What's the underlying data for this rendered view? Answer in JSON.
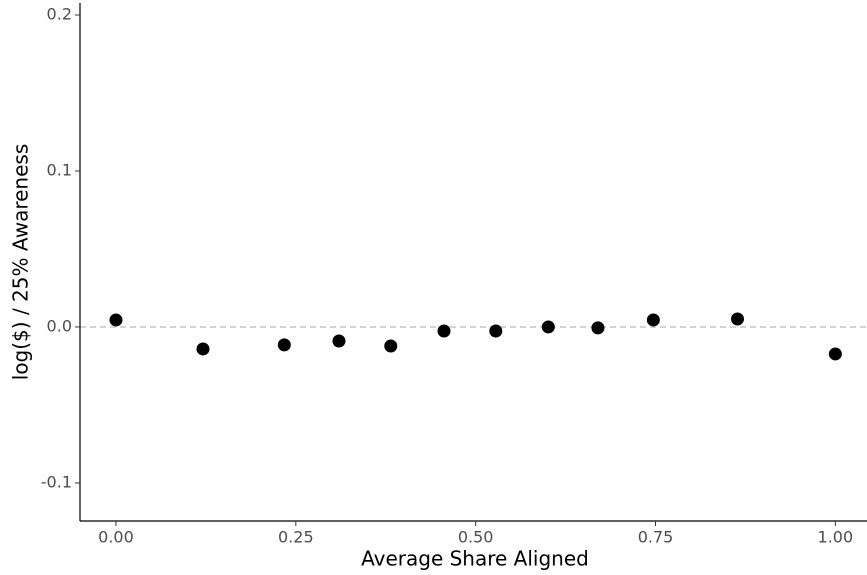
{
  "chart_data": {
    "type": "scatter",
    "x_label": "Average Share Aligned",
    "y_label": "log($) / 25% Awareness",
    "x": [
      0.0,
      0.121,
      0.234,
      0.31,
      0.382,
      0.456,
      0.528,
      0.601,
      0.67,
      0.747,
      0.864,
      1.0
    ],
    "values": [
      0.0045,
      -0.0141,
      -0.0115,
      -0.009,
      -0.0122,
      -0.0026,
      -0.0026,
      0.0,
      -0.0006,
      0.0045,
      0.0051,
      -0.0173
    ],
    "color": "#000000",
    "xlim": [
      -0.05,
      1.044
    ],
    "ylim": [
      -0.1244,
      0.2077
    ],
    "xticks": [
      {
        "value": 0,
        "label": "0.00"
      },
      {
        "value": 0.25,
        "label": "0.25"
      },
      {
        "value": 0.5,
        "label": "0.50"
      },
      {
        "value": 0.75,
        "label": "0.75"
      },
      {
        "value": 1,
        "label": "1.00"
      }
    ],
    "yticks": [
      {
        "value": -0.1,
        "label": "-0.1"
      },
      {
        "value": 0,
        "label": "0.0"
      },
      {
        "value": 0.1,
        "label": "0.1"
      },
      {
        "value": 0.2,
        "label": "0.2"
      }
    ],
    "reference_line": 0,
    "grid": false
  }
}
